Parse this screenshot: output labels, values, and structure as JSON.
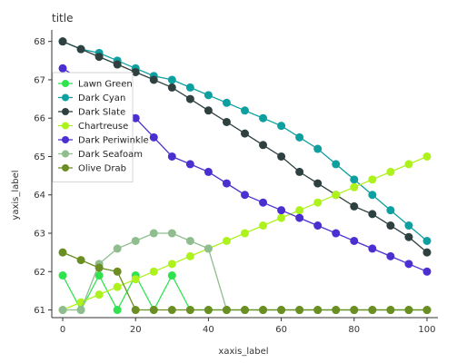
{
  "chart_data": {
    "type": "line",
    "title": "title",
    "xlabel": "xaxis_label",
    "ylabel": "yaxis_label",
    "xlim": [
      -3,
      103
    ],
    "ylim": [
      60.8,
      68.3
    ],
    "x_ticks": [
      0,
      20,
      40,
      60,
      80,
      100
    ],
    "y_ticks": [
      61,
      62,
      63,
      64,
      65,
      66,
      67,
      68
    ],
    "grid": false,
    "legend_position": "left",
    "series": [
      {
        "name": "Lawn Green",
        "color": "#2fe34f",
        "x": [
          0,
          5,
          10,
          15,
          20,
          25,
          30,
          35,
          40,
          45,
          50,
          55,
          60,
          65,
          70,
          75,
          80,
          85,
          90,
          95,
          100
        ],
        "y": [
          61.9,
          61.0,
          61.9,
          61.0,
          61.9,
          61.0,
          61.9,
          61.0,
          61.0,
          61.0,
          61.0,
          61.0,
          61.0,
          61.0,
          61.0,
          61.0,
          61.0,
          61.0,
          61.0,
          61.0,
          61.0
        ]
      },
      {
        "name": "Dark Cyan",
        "color": "#0e9fa0",
        "x": [
          0,
          5,
          10,
          15,
          20,
          25,
          30,
          35,
          40,
          45,
          50,
          55,
          60,
          65,
          70,
          75,
          80,
          85,
          90,
          95,
          100
        ],
        "y": [
          68.0,
          67.8,
          67.7,
          67.5,
          67.3,
          67.1,
          67.0,
          66.8,
          66.6,
          66.4,
          66.2,
          66.0,
          65.8,
          65.5,
          65.2,
          64.8,
          64.4,
          64.0,
          63.6,
          63.2,
          62.8
        ]
      },
      {
        "name": "Dark Slate",
        "color": "#2e4040",
        "x": [
          0,
          5,
          10,
          15,
          20,
          25,
          30,
          35,
          40,
          45,
          50,
          55,
          60,
          65,
          70,
          75,
          80,
          85,
          90,
          95,
          100
        ],
        "y": [
          68.0,
          67.8,
          67.6,
          67.4,
          67.2,
          67.0,
          66.8,
          66.5,
          66.2,
          65.9,
          65.6,
          65.3,
          65.0,
          64.6,
          64.3,
          64.0,
          63.7,
          63.5,
          63.2,
          62.9,
          62.5
        ]
      },
      {
        "name": "Chartreuse",
        "color": "#aef21d",
        "x": [
          0,
          5,
          10,
          15,
          20,
          25,
          30,
          35,
          40,
          45,
          50,
          55,
          60,
          65,
          70,
          75,
          80,
          85,
          90,
          95,
          100
        ],
        "y": [
          61.0,
          61.2,
          61.4,
          61.6,
          61.8,
          62.0,
          62.2,
          62.4,
          62.6,
          62.8,
          63.0,
          63.2,
          63.4,
          63.6,
          63.8,
          64.0,
          64.2,
          64.4,
          64.6,
          64.8,
          65.0
        ]
      },
      {
        "name": "Dark Periwinkle",
        "color": "#4c2fd0",
        "x": [
          0,
          5,
          10,
          15,
          20,
          25,
          30,
          35,
          40,
          45,
          50,
          55,
          60,
          65,
          70,
          75,
          80,
          85,
          90,
          95,
          100
        ],
        "y": [
          67.3,
          67.0,
          66.8,
          66.6,
          66.0,
          65.5,
          65.0,
          64.8,
          64.6,
          64.3,
          64.0,
          63.8,
          63.6,
          63.4,
          63.2,
          63.0,
          62.8,
          62.6,
          62.4,
          62.2,
          62.0
        ]
      },
      {
        "name": "Dark Seafoam",
        "color": "#8fbd8e",
        "x": [
          0,
          5,
          10,
          15,
          20,
          25,
          30,
          35,
          40,
          45,
          50,
          55,
          60,
          65,
          70,
          75,
          80,
          85,
          90,
          95,
          100
        ],
        "y": [
          61.0,
          61.0,
          62.2,
          62.6,
          62.8,
          63.0,
          63.0,
          62.8,
          62.6,
          61.0,
          61.0,
          61.0,
          61.0,
          61.0,
          61.0,
          61.0,
          61.0,
          61.0,
          61.0,
          61.0,
          61.0
        ]
      },
      {
        "name": "Olive Drab",
        "color": "#6b8e23",
        "x": [
          0,
          5,
          10,
          15,
          20,
          25,
          30,
          35,
          40,
          45,
          50,
          55,
          60,
          65,
          70,
          75,
          80,
          85,
          90,
          95,
          100
        ],
        "y": [
          62.5,
          62.3,
          62.1,
          62.0,
          61.0,
          61.0,
          61.0,
          61.0,
          61.0,
          61.0,
          61.0,
          61.0,
          61.0,
          61.0,
          61.0,
          61.0,
          61.0,
          61.0,
          61.0,
          61.0,
          61.0
        ]
      }
    ]
  }
}
